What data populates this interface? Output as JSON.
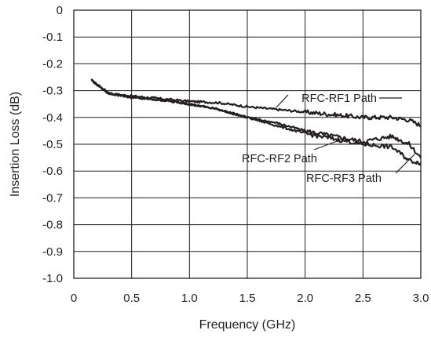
{
  "chart_data": {
    "type": "line",
    "xlabel": "Frequency (GHz)",
    "ylabel": "Insertion Loss (dB)",
    "xlim": [
      0,
      3.0
    ],
    "ylim": [
      -1.0,
      0
    ],
    "x_ticks": [
      "0",
      "0.5",
      "1.0",
      "1.5",
      "2.0",
      "2.5",
      "3.0"
    ],
    "y_ticks": [
      "0",
      "-0.1",
      "-0.2",
      "-0.3",
      "-0.4",
      "-0.5",
      "-0.6",
      "-0.7",
      "-0.8",
      "-0.9",
      "-1.0"
    ],
    "grid": true,
    "x": [
      0.15,
      0.3,
      0.5,
      0.75,
      1.0,
      1.25,
      1.5,
      1.75,
      2.0,
      2.25,
      2.5,
      2.75,
      2.9,
      3.0
    ],
    "series": [
      {
        "name": "RFC-RF1 Path",
        "values": [
          -0.26,
          -0.31,
          -0.32,
          -0.33,
          -0.34,
          -0.345,
          -0.36,
          -0.37,
          -0.38,
          -0.39,
          -0.4,
          -0.4,
          -0.41,
          -0.43
        ]
      },
      {
        "name": "RFC-RF2 Path",
        "values": [
          -0.26,
          -0.31,
          -0.325,
          -0.335,
          -0.35,
          -0.37,
          -0.4,
          -0.42,
          -0.45,
          -0.47,
          -0.49,
          -0.47,
          -0.5,
          -0.55
        ]
      },
      {
        "name": "RFC-RF3 Path",
        "values": [
          -0.26,
          -0.31,
          -0.325,
          -0.335,
          -0.35,
          -0.37,
          -0.4,
          -0.43,
          -0.46,
          -0.48,
          -0.5,
          -0.51,
          -0.56,
          -0.57
        ]
      }
    ],
    "colors": {
      "line": "#231f20",
      "grid": "#231f20"
    }
  }
}
